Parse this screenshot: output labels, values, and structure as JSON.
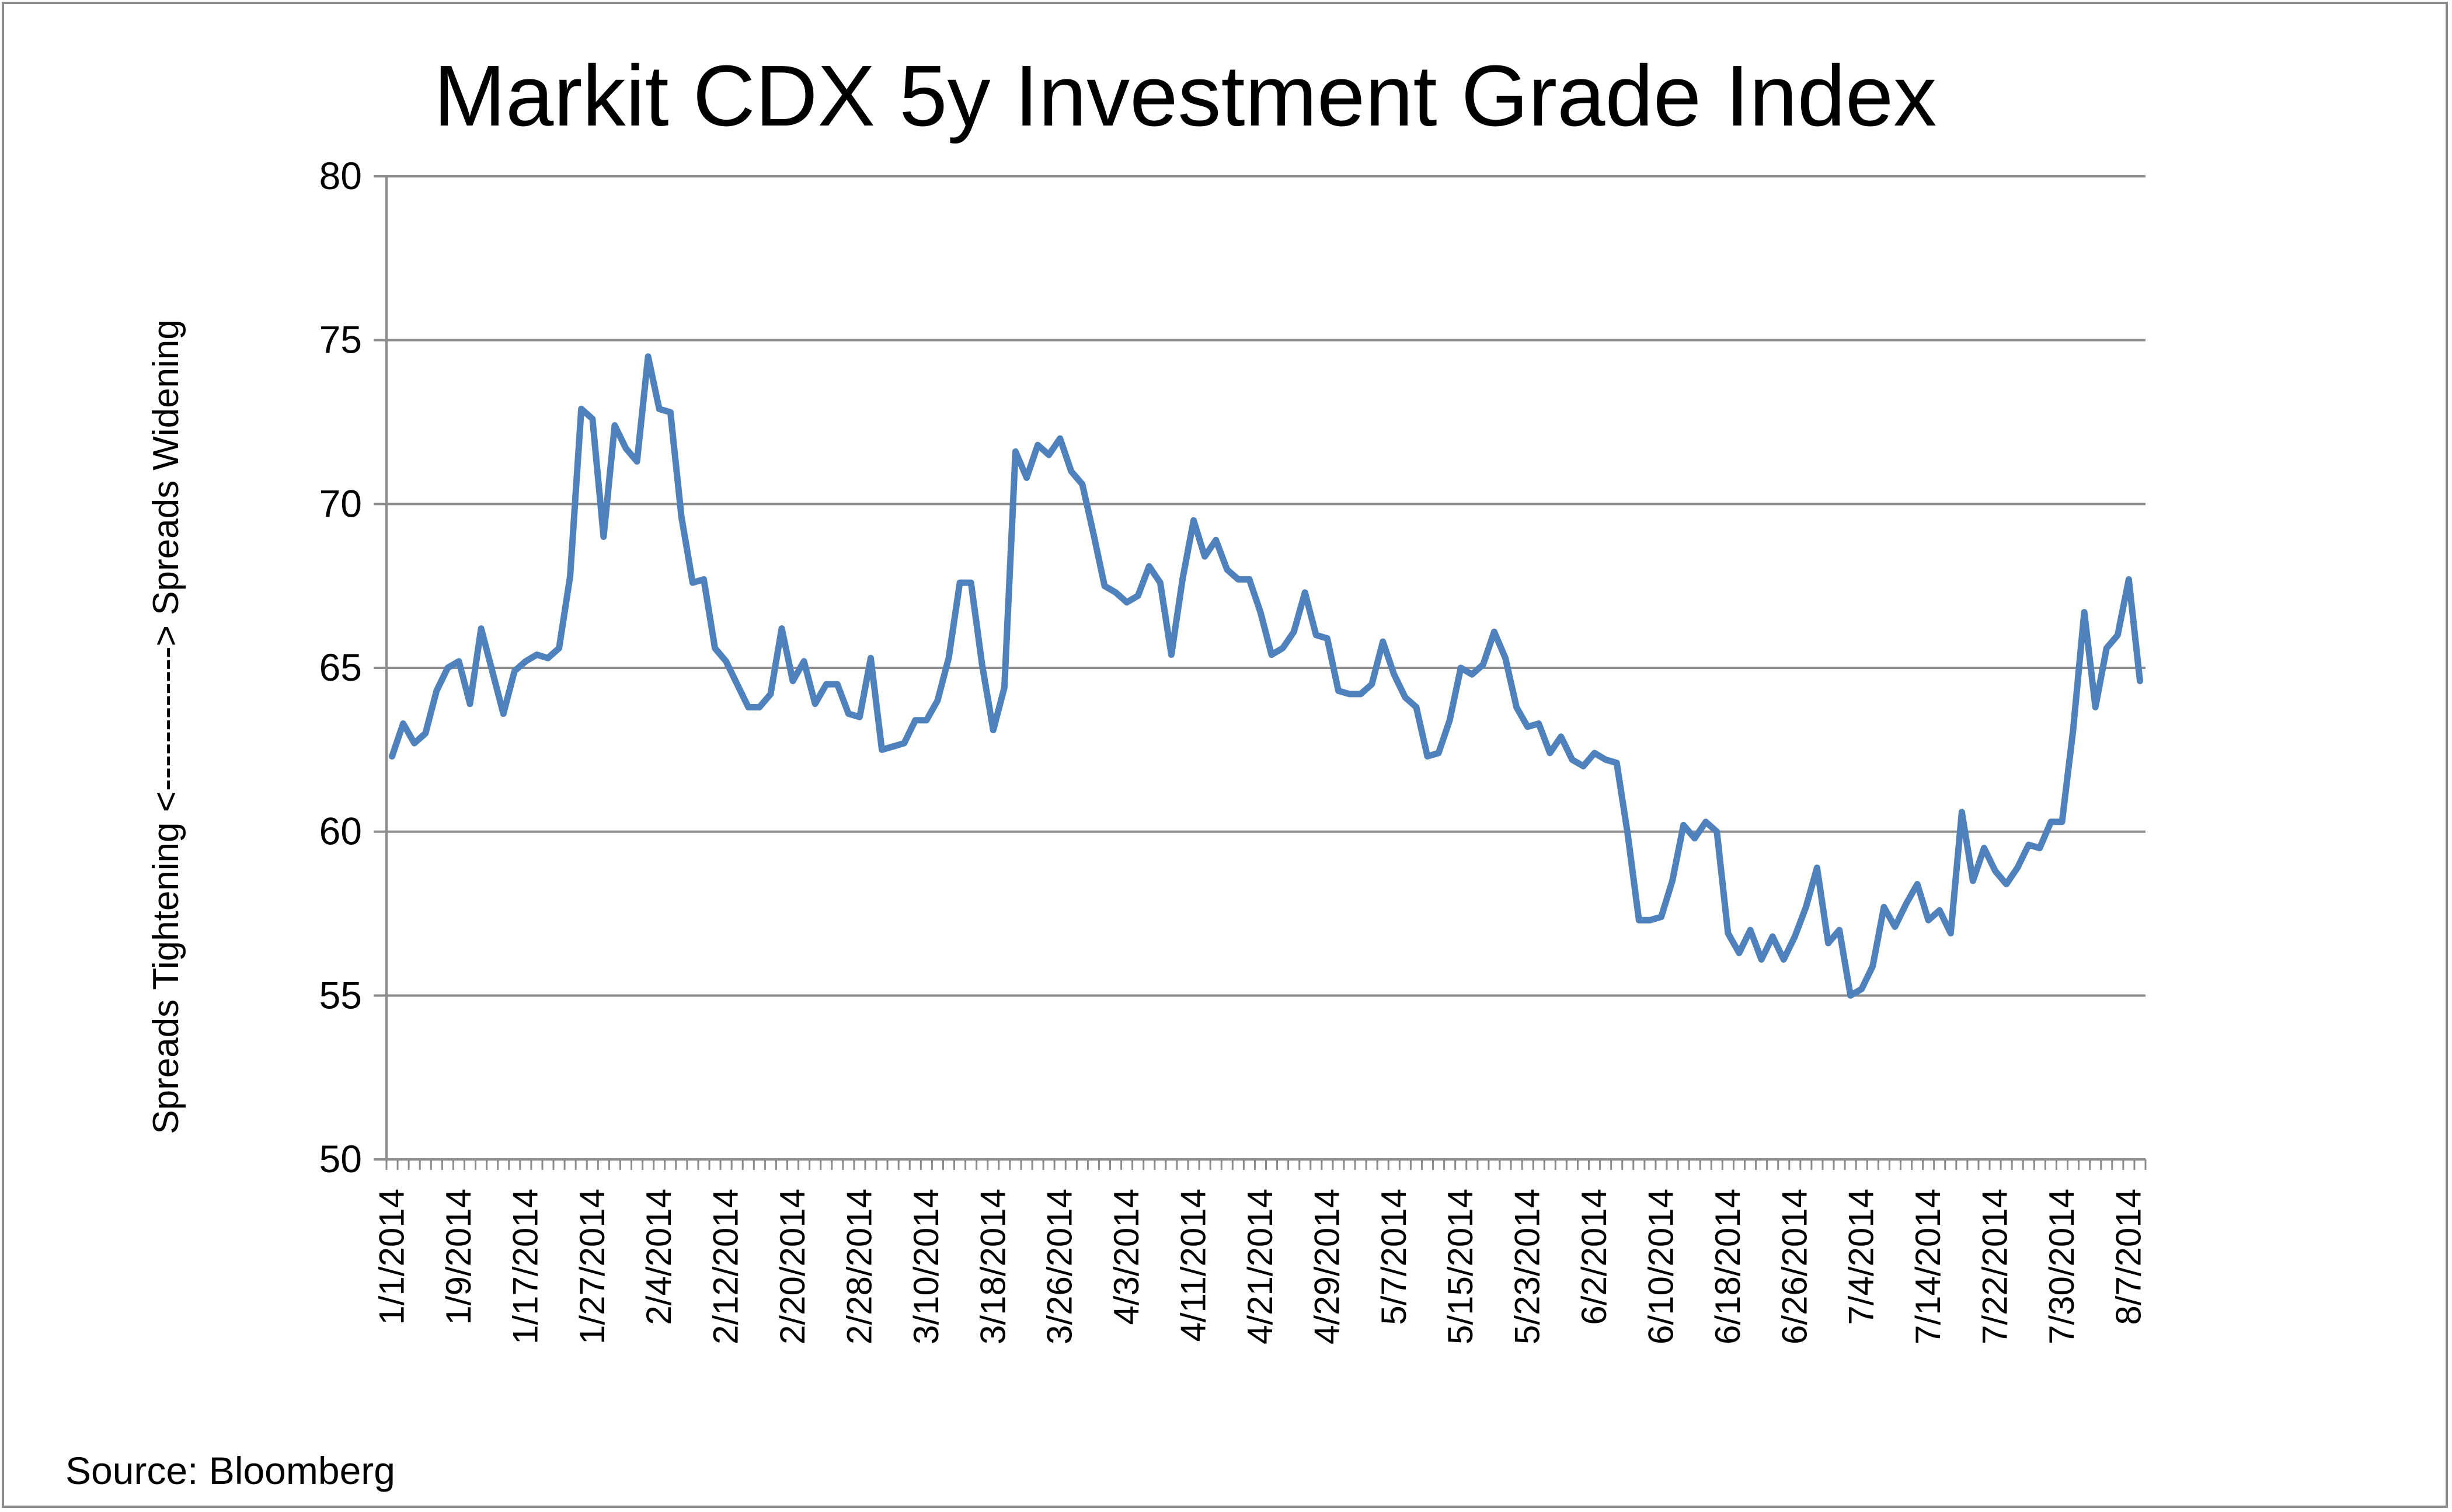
{
  "chart_data": {
    "type": "line",
    "title": "Markit CDX 5y Investment Grade Index",
    "ylabel": "Spreads Tightening <------------> Spreads Widening",
    "xlabel": "",
    "source": "Source: Bloomberg",
    "ylim": [
      50,
      80
    ],
    "yticks": [
      "50",
      "55",
      "60",
      "65",
      "70",
      "75",
      "80"
    ],
    "grid": true,
    "legend": "none",
    "line_color": "#4f81bd",
    "xtick_labels": [
      "1/1/2014",
      "1/9/2014",
      "1/17/2014",
      "1/27/2014",
      "2/4/2014",
      "2/12/2014",
      "2/20/2014",
      "2/28/2014",
      "3/10/2014",
      "3/18/2014",
      "3/26/2014",
      "4/3/2014",
      "4/11/2014",
      "4/21/2014",
      "4/29/2014",
      "5/7/2014",
      "5/15/2014",
      "5/23/2014",
      "6/2/2014",
      "6/10/2014",
      "6/18/2014",
      "6/26/2014",
      "7/4/2014",
      "7/14/2014",
      "7/22/2014",
      "7/30/2014",
      "8/7/2014"
    ],
    "series": [
      {
        "values": [
          62.3,
          63.3,
          62.7,
          63.0,
          64.3,
          65.0,
          65.2,
          63.9,
          66.2,
          64.9,
          63.6,
          64.9,
          65.2,
          65.4,
          65.3,
          65.6,
          67.8,
          72.9,
          72.6,
          69.0,
          72.4,
          71.7,
          71.3,
          74.5,
          72.9,
          72.8,
          69.6,
          67.6,
          67.7,
          65.6,
          65.2,
          64.5,
          63.8,
          63.8,
          64.2,
          66.2,
          64.6,
          65.2,
          63.9,
          64.5,
          64.5,
          63.6,
          63.5,
          65.3,
          62.5,
          62.6,
          62.7,
          63.4,
          63.4,
          64.0,
          65.3,
          67.6,
          67.6,
          65.1,
          63.1,
          64.4,
          71.6,
          70.8,
          71.8,
          71.5,
          72.0,
          71.0,
          70.6,
          69.1,
          67.5,
          67.3,
          67.0,
          67.2,
          68.1,
          67.6,
          65.4,
          67.7,
          69.5,
          68.4,
          68.9,
          68.0,
          67.7,
          67.7,
          66.7,
          65.4,
          65.6,
          66.1,
          67.3,
          66.0,
          65.9,
          64.3,
          64.2,
          64.2,
          64.5,
          65.8,
          64.8,
          64.1,
          63.8,
          62.3,
          62.4,
          63.4,
          65.0,
          64.8,
          65.1,
          66.1,
          65.3,
          63.8,
          63.2,
          63.3,
          62.4,
          62.9,
          62.2,
          62.0,
          62.4,
          62.2,
          62.1,
          59.9,
          57.3,
          57.3,
          57.4,
          58.5,
          60.2,
          59.8,
          60.3,
          60.0,
          56.9,
          56.3,
          57.0,
          56.1,
          56.8,
          56.1,
          56.8,
          57.7,
          58.9,
          56.6,
          57.0,
          55.0,
          55.2,
          55.9,
          57.7,
          57.1,
          57.8,
          58.4,
          57.3,
          57.6,
          56.9,
          60.6,
          58.5,
          59.5,
          58.8,
          58.4,
          58.9,
          59.6,
          59.5,
          60.3,
          60.3,
          63.1,
          66.7,
          63.8,
          65.6,
          66.0,
          67.7,
          64.6
        ]
      }
    ]
  }
}
